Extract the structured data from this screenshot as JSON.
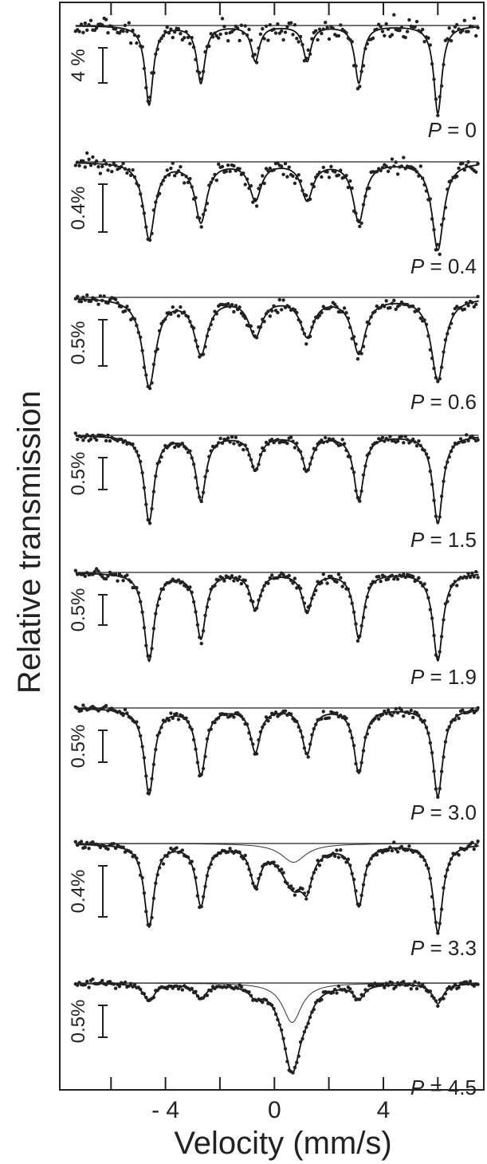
{
  "chart_data": {
    "type": "line",
    "xlabel": "Velocity (mm/s)",
    "ylabel": "Relative transmission",
    "xlim": [
      -7.5,
      7.6
    ],
    "xticks": [
      -6,
      -4,
      -2,
      0,
      2,
      4,
      6
    ],
    "xtick_labels": [
      {
        "value": -4,
        "label": "- 4"
      },
      {
        "value": 0,
        "label": "0"
      },
      {
        "value": 4,
        "label": "4"
      }
    ],
    "grid": false,
    "peak_positions": [
      -4.6,
      -2.7,
      -0.7,
      1.2,
      3.1,
      6.0
    ],
    "series": [
      {
        "name": "P = 0",
        "scale_bar": "4 %",
        "scale_pct": 4,
        "peak_depths_pct": [
          9.0,
          6.5,
          4.0,
          4.0,
          6.5,
          10.0
        ],
        "linewidth": 0.18,
        "noise_pct": 0.12,
        "baseline_pct": 0,
        "extra_peaks": []
      },
      {
        "name": "P = 0.4",
        "scale_bar": "0.4%",
        "scale_pct": 0.4,
        "peak_depths_pct": [
          0.45,
          0.35,
          0.22,
          0.22,
          0.35,
          0.52
        ],
        "linewidth": 0.26,
        "noise_pct": 0.09,
        "baseline_pct": 0,
        "extra_peaks": []
      },
      {
        "name": "P = 0.6",
        "scale_bar": "0.5%",
        "scale_pct": 0.5,
        "peak_depths_pct": [
          0.8,
          0.5,
          0.34,
          0.34,
          0.5,
          0.75
        ],
        "linewidth": 0.3,
        "noise_pct": 0.07,
        "baseline_pct": 0,
        "extra_peaks": []
      },
      {
        "name": "P = 1.5",
        "scale_bar": "0.5%",
        "scale_pct": 0.5,
        "peak_depths_pct": [
          0.8,
          0.6,
          0.32,
          0.32,
          0.6,
          0.82
        ],
        "linewidth": 0.22,
        "noise_pct": 0.05,
        "baseline_pct": 0,
        "extra_peaks": []
      },
      {
        "name": "P = 1.9",
        "scale_bar": "0.5%",
        "scale_pct": 0.5,
        "peak_depths_pct": [
          0.85,
          0.63,
          0.35,
          0.38,
          0.63,
          0.85
        ],
        "linewidth": 0.22,
        "noise_pct": 0.05,
        "baseline_pct": 0,
        "extra_peaks": []
      },
      {
        "name": "P = 3.0",
        "scale_bar": "0.5%",
        "scale_pct": 0.5,
        "peak_depths_pct": [
          0.8,
          0.62,
          0.4,
          0.42,
          0.6,
          0.82
        ],
        "linewidth": 0.22,
        "noise_pct": 0.05,
        "baseline_pct": 0,
        "extra_peaks": []
      },
      {
        "name": "P = 3.3",
        "scale_bar": "0.4%",
        "scale_pct": 0.4,
        "peak_depths_pct": [
          0.75,
          0.55,
          0.35,
          0.25,
          0.55,
          0.8
        ],
        "linewidth": 0.22,
        "noise_pct": 0.05,
        "baseline_pct": 0,
        "extra_peaks": [
          {
            "center": 0.7,
            "depth_pct": 0.38,
            "width": 0.55
          }
        ]
      },
      {
        "name": "P = 4.5",
        "scale_bar": "0.5%",
        "scale_pct": 0.5,
        "peak_depths_pct": [
          0.15,
          0.12,
          0.08,
          0.08,
          0.12,
          0.17
        ],
        "linewidth": 0.24,
        "noise_pct": 0.04,
        "baseline_pct": 0,
        "extra_peaks": [
          {
            "center": 0.65,
            "depth_pct": 0.75,
            "width": 0.42
          }
        ]
      }
    ]
  }
}
